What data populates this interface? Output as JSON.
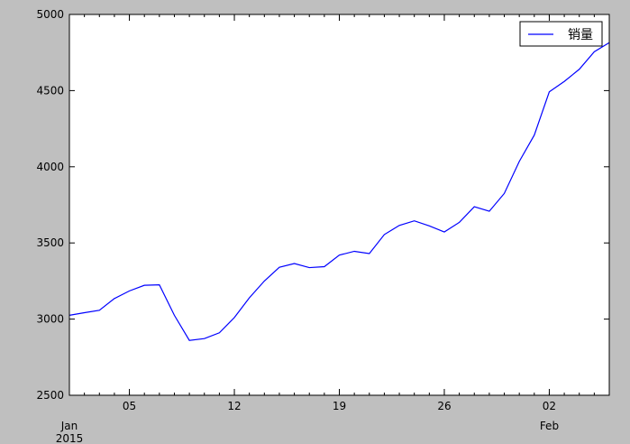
{
  "chart_data": {
    "type": "line",
    "title": "",
    "xlabel": "",
    "ylabel": "",
    "x_start": "2015-01-01",
    "x_end": "2015-02-06",
    "ylim": [
      2500,
      5000
    ],
    "yticks": [
      2500,
      3000,
      3500,
      4000,
      4500,
      5000
    ],
    "xtick_labels": [
      {
        "date": "2015-01-05",
        "label": "05"
      },
      {
        "date": "2015-01-12",
        "label": "12"
      },
      {
        "date": "2015-01-19",
        "label": "19"
      },
      {
        "date": "2015-01-26",
        "label": "26"
      },
      {
        "date": "2015-02-02",
        "label": "02"
      }
    ],
    "month_labels": [
      {
        "date": "2015-01-01",
        "label": "Jan",
        "year": "2015"
      },
      {
        "date": "2015-02-02",
        "label": "Feb",
        "year": ""
      }
    ],
    "legend": {
      "position": "top-right"
    },
    "series": [
      {
        "name": "销量",
        "color": "#0000ff",
        "points": [
          [
            "2015-01-01",
            3025
          ],
          [
            "2015-01-02",
            3042
          ],
          [
            "2015-01-03",
            3058
          ],
          [
            "2015-01-04",
            3135
          ],
          [
            "2015-01-05",
            3185
          ],
          [
            "2015-01-06",
            3222
          ],
          [
            "2015-01-07",
            3225
          ],
          [
            "2015-01-08",
            3025
          ],
          [
            "2015-01-09",
            2860
          ],
          [
            "2015-01-10",
            2872
          ],
          [
            "2015-01-11",
            2910
          ],
          [
            "2015-01-12",
            3010
          ],
          [
            "2015-01-13",
            3140
          ],
          [
            "2015-01-14",
            3250
          ],
          [
            "2015-01-15",
            3340
          ],
          [
            "2015-01-16",
            3365
          ],
          [
            "2015-01-17",
            3338
          ],
          [
            "2015-01-18",
            3344
          ],
          [
            "2015-01-19",
            3420
          ],
          [
            "2015-01-20",
            3445
          ],
          [
            "2015-01-21",
            3430
          ],
          [
            "2015-01-22",
            3555
          ],
          [
            "2015-01-23",
            3615
          ],
          [
            "2015-01-24",
            3645
          ],
          [
            "2015-01-25",
            3612
          ],
          [
            "2015-01-26",
            3572
          ],
          [
            "2015-01-27",
            3635
          ],
          [
            "2015-01-28",
            3738
          ],
          [
            "2015-01-29",
            3708
          ],
          [
            "2015-01-30",
            3825
          ],
          [
            "2015-01-31",
            4035
          ],
          [
            "2015-02-01",
            4208
          ],
          [
            "2015-02-02",
            4492
          ],
          [
            "2015-02-03",
            4560
          ],
          [
            "2015-02-04",
            4640
          ],
          [
            "2015-02-05",
            4755
          ],
          [
            "2015-02-06",
            4815
          ]
        ]
      }
    ]
  }
}
